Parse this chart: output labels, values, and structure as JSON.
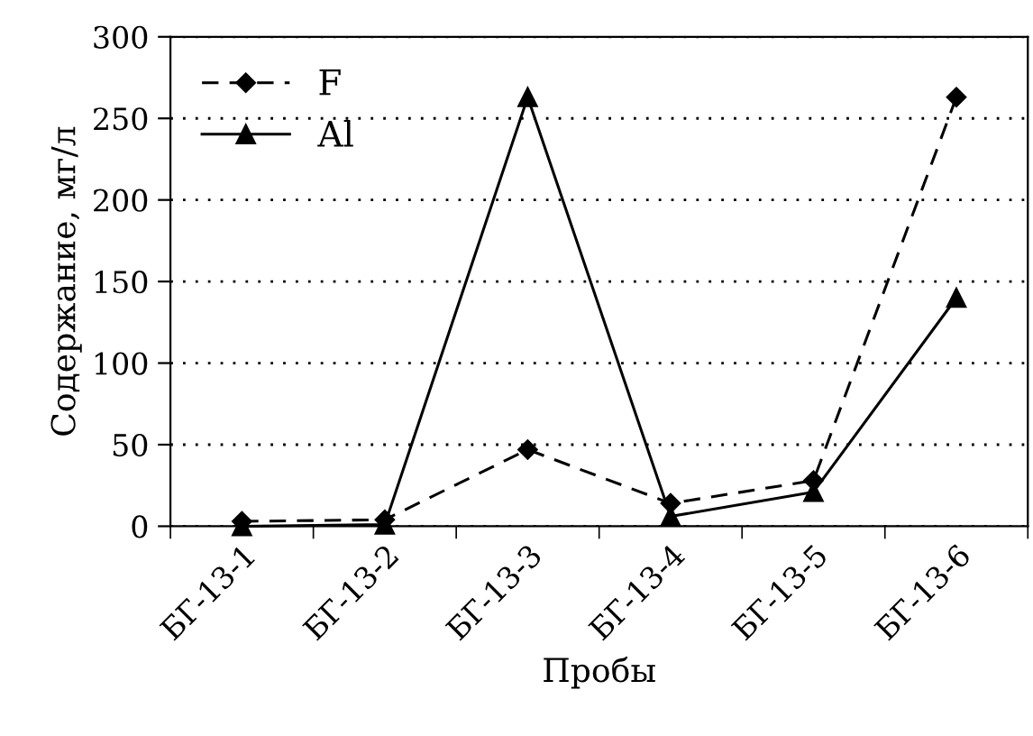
{
  "chart_data": {
    "type": "line",
    "xlabel": "Пробы",
    "ylabel": "Содержание, мг/л",
    "categories": [
      "БГ-13-1",
      "БГ-13-2",
      "БГ-13-3",
      "БГ-13-4",
      "БГ-13-5",
      "БГ-13-6"
    ],
    "series": [
      {
        "name": "F",
        "color": "#000000",
        "marker": "diamond",
        "line_style": "dashed",
        "values": [
          3,
          4,
          47,
          14,
          28,
          263
        ]
      },
      {
        "name": "Al",
        "color": "#000000",
        "marker": "triangle",
        "line_style": "solid",
        "values": [
          0,
          1,
          263,
          6,
          21,
          140
        ]
      }
    ],
    "ylim": [
      0,
      300
    ],
    "yticks": [
      0,
      50,
      100,
      150,
      200,
      250,
      300
    ],
    "grid": "y",
    "legend": "top left"
  }
}
